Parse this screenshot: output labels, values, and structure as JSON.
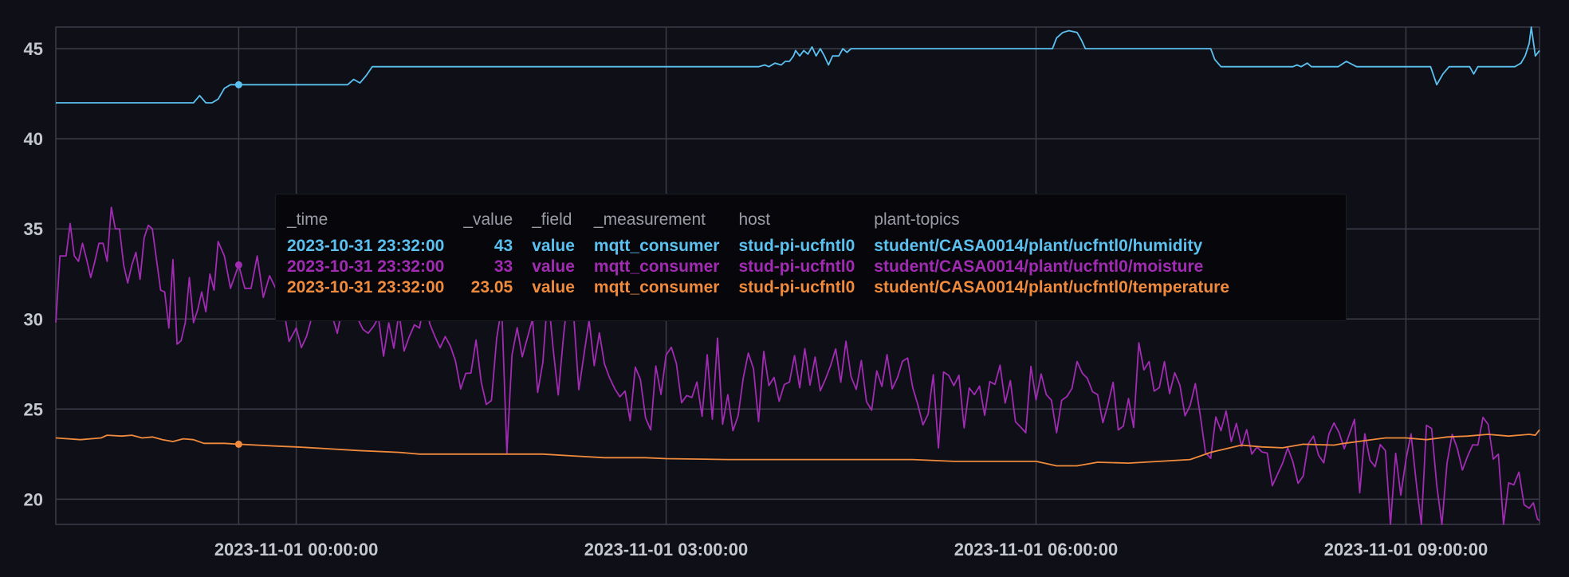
{
  "chart_data": {
    "type": "line",
    "ylim": [
      18.6,
      46.2
    ],
    "yticks": [
      "20",
      "25",
      "30",
      "35",
      "40",
      "45"
    ],
    "xlim": [
      "2023-10-31 22:03:00",
      "2023-11-01 10:05:00"
    ],
    "xticks": [
      {
        "t": "2023-11-01 00:00:00",
        "label": "2023-11-01 00:00:00"
      },
      {
        "t": "2023-11-01 03:00:00",
        "label": "2023-11-01 03:00:00"
      },
      {
        "t": "2023-11-01 06:00:00",
        "label": "2023-11-01 06:00:00"
      },
      {
        "t": "2023-11-01 09:00:00",
        "label": "2023-11-01 09:00:00"
      }
    ],
    "grid": true,
    "series": [
      {
        "name": "student/CASA0014/plant/ucfntl0/humidity",
        "color": "#5bc1f0",
        "points": [
          [
            "2023-10-31 22:03:00",
            42
          ],
          [
            "2023-10-31 23:10:00",
            42
          ],
          [
            "2023-10-31 23:13:00",
            42.4
          ],
          [
            "2023-10-31 23:16:00",
            42
          ],
          [
            "2023-10-31 23:19:00",
            42
          ],
          [
            "2023-10-31 23:22:00",
            42.2
          ],
          [
            "2023-10-31 23:25:00",
            42.8
          ],
          [
            "2023-10-31 23:28:00",
            43
          ],
          [
            "2023-10-31 23:32:00",
            43
          ],
          [
            "2023-11-01 00:25:00",
            43
          ],
          [
            "2023-11-01 00:28:00",
            43.3
          ],
          [
            "2023-11-01 00:31:00",
            43.1
          ],
          [
            "2023-11-01 00:34:00",
            43.5
          ],
          [
            "2023-11-01 00:37:00",
            44
          ],
          [
            "2023-11-01 03:45:00",
            44
          ],
          [
            "2023-11-01 03:48:00",
            44.1
          ],
          [
            "2023-11-01 03:50:00",
            44
          ],
          [
            "2023-11-01 03:53:00",
            44.2
          ],
          [
            "2023-11-01 03:56:00",
            44.1
          ],
          [
            "2023-11-01 03:58:00",
            44.3
          ],
          [
            "2023-11-01 04:00:00",
            44.3
          ],
          [
            "2023-11-01 04:02:00",
            44.6
          ],
          [
            "2023-11-01 04:03:00",
            44.9
          ],
          [
            "2023-11-01 04:05:00",
            44.6
          ],
          [
            "2023-11-01 04:07:00",
            44.9
          ],
          [
            "2023-11-01 04:09:00",
            44.7
          ],
          [
            "2023-11-01 04:11:00",
            45.1
          ],
          [
            "2023-11-01 04:13:00",
            44.6
          ],
          [
            "2023-11-01 04:15:00",
            45
          ],
          [
            "2023-11-01 04:17:00",
            44.6
          ],
          [
            "2023-11-01 04:19:00",
            44.1
          ],
          [
            "2023-11-01 04:21:00",
            44.6
          ],
          [
            "2023-11-01 04:24:00",
            44.6
          ],
          [
            "2023-11-01 04:26:00",
            45
          ],
          [
            "2023-11-01 04:28:00",
            44.8
          ],
          [
            "2023-11-01 04:30:00",
            45
          ],
          [
            "2023-11-01 04:33:00",
            45
          ],
          [
            "2023-11-01 06:08:00",
            45
          ],
          [
            "2023-11-01 06:10:00",
            45.6
          ],
          [
            "2023-11-01 06:13:00",
            45.9
          ],
          [
            "2023-11-01 06:16:00",
            46
          ],
          [
            "2023-11-01 06:20:00",
            45.9
          ],
          [
            "2023-11-01 06:22:00",
            45.5
          ],
          [
            "2023-11-01 06:24:00",
            45
          ],
          [
            "2023-11-01 07:25:00",
            45
          ],
          [
            "2023-11-01 07:27:00",
            44.4
          ],
          [
            "2023-11-01 07:30:00",
            44
          ],
          [
            "2023-11-01 08:05:00",
            44
          ],
          [
            "2023-11-01 08:07:00",
            44.1
          ],
          [
            "2023-11-01 08:09:00",
            44
          ],
          [
            "2023-11-01 08:12:00",
            44.2
          ],
          [
            "2023-11-01 08:14:00",
            44
          ],
          [
            "2023-11-01 08:27:00",
            44
          ],
          [
            "2023-11-01 08:31:00",
            44.3
          ],
          [
            "2023-11-01 08:36:00",
            44
          ],
          [
            "2023-11-01 09:12:00",
            44
          ],
          [
            "2023-11-01 09:15:00",
            43
          ],
          [
            "2023-11-01 09:18:00",
            43.6
          ],
          [
            "2023-11-01 09:21:00",
            44
          ],
          [
            "2023-11-01 09:31:00",
            44
          ],
          [
            "2023-11-01 09:33:00",
            43.6
          ],
          [
            "2023-11-01 09:35:00",
            44
          ],
          [
            "2023-11-01 09:53:00",
            44
          ],
          [
            "2023-11-01 09:56:00",
            44.2
          ],
          [
            "2023-11-01 09:58:00",
            44.6
          ],
          [
            "2023-11-01 10:00:00",
            45.3
          ],
          [
            "2023-11-01 10:01:00",
            46.2
          ],
          [
            "2023-11-01 10:03:00",
            44.6
          ],
          [
            "2023-11-01 10:05:00",
            44.9
          ]
        ]
      },
      {
        "name": "student/CASA0014/plant/ucfntl0/moisture",
        "color": "#a12bb3",
        "seed": 7,
        "anchors": [
          [
            "2023-10-31 22:03:00",
            29.8
          ],
          [
            "2023-10-31 22:05:00",
            33.5
          ],
          [
            "2023-10-31 22:08:00",
            33.5
          ],
          [
            "2023-10-31 22:10:00",
            35.3
          ],
          [
            "2023-10-31 22:12:00",
            33.5
          ],
          [
            "2023-10-31 22:14:00",
            33.2
          ],
          [
            "2023-10-31 22:16:00",
            34.2
          ],
          [
            "2023-10-31 22:18:00",
            33.3
          ],
          [
            "2023-10-31 22:20:00",
            32.3
          ],
          [
            "2023-10-31 22:22:00",
            33.2
          ],
          [
            "2023-10-31 22:24:00",
            34.2
          ],
          [
            "2023-10-31 22:26:00",
            34.2
          ],
          [
            "2023-10-31 22:28:00",
            33.2
          ],
          [
            "2023-10-31 22:30:00",
            36.2
          ],
          [
            "2023-10-31 22:32:00",
            35
          ],
          [
            "2023-10-31 22:34:00",
            35
          ],
          [
            "2023-10-31 22:36:00",
            33
          ],
          [
            "2023-10-31 22:38:00",
            32
          ],
          [
            "2023-10-31 22:40:00",
            33
          ],
          [
            "2023-10-31 22:42:00",
            33.7
          ],
          [
            "2023-10-31 22:44:00",
            32.2
          ],
          [
            "2023-10-31 22:46:00",
            34.5
          ],
          [
            "2023-10-31 22:48:00",
            35.2
          ],
          [
            "2023-10-31 22:50:00",
            35
          ],
          [
            "2023-10-31 22:52:00",
            33.3
          ],
          [
            "2023-10-31 22:54:00",
            31.6
          ],
          [
            "2023-10-31 22:56:00",
            31.5
          ],
          [
            "2023-10-31 22:58:00",
            29.5
          ],
          [
            "2023-10-31 23:00:00",
            33.3
          ],
          [
            "2023-10-31 23:02:00",
            28.6
          ],
          [
            "2023-10-31 23:04:00",
            28.8
          ],
          [
            "2023-10-31 23:06:00",
            29.8
          ],
          [
            "2023-10-31 23:08:00",
            32.3
          ],
          [
            "2023-10-31 23:10:00",
            29.8
          ],
          [
            "2023-10-31 23:12:00",
            30.5
          ],
          [
            "2023-10-31 23:14:00",
            31.5
          ],
          [
            "2023-10-31 23:16:00",
            30.4
          ],
          [
            "2023-10-31 23:18:00",
            32.5
          ],
          [
            "2023-10-31 23:20:00",
            31.6
          ],
          [
            "2023-10-31 23:22:00",
            34.3
          ],
          [
            "2023-10-31 23:25:00",
            33.5
          ],
          [
            "2023-10-31 23:28:00",
            31.7
          ],
          [
            "2023-10-31 23:32:00",
            33
          ],
          [
            "2023-10-31 23:35:00",
            31.7
          ],
          [
            "2023-10-31 23:38:00",
            31.7
          ],
          [
            "2023-10-31 23:41:00",
            33.5
          ],
          [
            "2023-10-31 23:44:00",
            31.2
          ],
          [
            "2023-10-31 23:47:00",
            32.4
          ],
          [
            "2023-10-31 23:50:00",
            31.7
          ],
          [
            "2023-10-31 23:53:00",
            31.2
          ],
          [
            "2023-11-01 00:00:00",
            29.5
          ],
          [
            "2023-11-01 00:10:00",
            30
          ],
          [
            "2023-11-01 00:20:00",
            29.2
          ],
          [
            "2023-11-01 00:30:00",
            30
          ],
          [
            "2023-11-01 01:00:00",
            29.5
          ],
          [
            "2023-11-01 01:15:00",
            28.5
          ],
          [
            "2023-11-01 01:25:00",
            27
          ],
          [
            "2023-11-01 01:30:00",
            26.5
          ],
          [
            "2023-11-01 01:45:00",
            28
          ],
          [
            "2023-11-01 01:55:00",
            30
          ],
          [
            "2023-11-01 02:10:00",
            29
          ],
          [
            "2023-11-01 02:20:00",
            28
          ],
          [
            "2023-11-01 02:30:00",
            27.5
          ],
          [
            "2023-11-01 02:40:00",
            26
          ],
          [
            "2023-11-01 02:50:00",
            24.5
          ],
          [
            "2023-11-01 03:00:00",
            28
          ],
          [
            "2023-11-01 03:15:00",
            26.5
          ],
          [
            "2023-11-01 03:30:00",
            25.8
          ],
          [
            "2023-11-01 04:00:00",
            26.5
          ],
          [
            "2023-11-01 04:30:00",
            26.8
          ],
          [
            "2023-11-01 05:00:00",
            26.2
          ],
          [
            "2023-11-01 05:30:00",
            25.8
          ],
          [
            "2023-11-01 06:00:00",
            25.5
          ],
          [
            "2023-11-01 06:30:00",
            25.8
          ],
          [
            "2023-11-01 07:00:00",
            26.2
          ],
          [
            "2023-11-01 07:15:00",
            25.2
          ],
          [
            "2023-11-01 07:30:00",
            23.8
          ],
          [
            "2023-11-01 07:45:00",
            22.5
          ],
          [
            "2023-11-01 08:00:00",
            22
          ],
          [
            "2023-11-01 08:15:00",
            23.5
          ],
          [
            "2023-11-01 08:30:00",
            22.8
          ],
          [
            "2023-11-01 08:45:00",
            21.8
          ],
          [
            "2023-11-01 09:00:00",
            22.2
          ],
          [
            "2023-11-01 09:20:00",
            22
          ],
          [
            "2023-11-01 09:35:00",
            23
          ],
          [
            "2023-11-01 09:45:00",
            22.5
          ],
          [
            "2023-11-01 09:55:00",
            21.5
          ],
          [
            "2023-11-01 10:00:00",
            19.5
          ],
          [
            "2023-11-01 10:02:00",
            19.8
          ],
          [
            "2023-11-01 10:04:00",
            18.9
          ],
          [
            "2023-11-01 10:05:00",
            18.8
          ]
        ]
      },
      {
        "name": "student/CASA0014/plant/ucfntl0/temperature",
        "color": "#f08a3c",
        "points": [
          [
            "2023-10-31 22:03:00",
            23.4
          ],
          [
            "2023-10-31 22:15:00",
            23.3
          ],
          [
            "2023-10-31 22:25:00",
            23.4
          ],
          [
            "2023-10-31 22:28:00",
            23.55
          ],
          [
            "2023-10-31 22:35:00",
            23.5
          ],
          [
            "2023-10-31 22:40:00",
            23.55
          ],
          [
            "2023-10-31 22:45:00",
            23.4
          ],
          [
            "2023-10-31 22:50:00",
            23.45
          ],
          [
            "2023-10-31 22:55:00",
            23.3
          ],
          [
            "2023-10-31 23:00:00",
            23.2
          ],
          [
            "2023-10-31 23:05:00",
            23.35
          ],
          [
            "2023-10-31 23:10:00",
            23.3
          ],
          [
            "2023-10-31 23:15:00",
            23.1
          ],
          [
            "2023-10-31 23:25:00",
            23.1
          ],
          [
            "2023-10-31 23:32:00",
            23.05
          ],
          [
            "2023-10-31 23:50:00",
            22.95
          ],
          [
            "2023-11-01 00:00:00",
            22.9
          ],
          [
            "2023-11-01 00:15:00",
            22.8
          ],
          [
            "2023-11-01 00:30:00",
            22.7
          ],
          [
            "2023-11-01 00:50:00",
            22.6
          ],
          [
            "2023-11-01 01:00:00",
            22.5
          ],
          [
            "2023-11-01 01:30:00",
            22.5
          ],
          [
            "2023-11-01 02:00:00",
            22.5
          ],
          [
            "2023-11-01 02:15:00",
            22.4
          ],
          [
            "2023-11-01 02:30:00",
            22.3
          ],
          [
            "2023-11-01 02:50:00",
            22.3
          ],
          [
            "2023-11-01 03:00:00",
            22.25
          ],
          [
            "2023-11-01 03:30:00",
            22.2
          ],
          [
            "2023-11-01 04:00:00",
            22.2
          ],
          [
            "2023-11-01 04:30:00",
            22.2
          ],
          [
            "2023-11-01 05:00:00",
            22.2
          ],
          [
            "2023-11-01 05:20:00",
            22.1
          ],
          [
            "2023-11-01 05:40:00",
            22.1
          ],
          [
            "2023-11-01 06:00:00",
            22.1
          ],
          [
            "2023-11-01 06:10:00",
            21.85
          ],
          [
            "2023-11-01 06:20:00",
            21.85
          ],
          [
            "2023-11-01 06:30:00",
            22.05
          ],
          [
            "2023-11-01 06:45:00",
            22.0
          ],
          [
            "2023-11-01 07:00:00",
            22.1
          ],
          [
            "2023-11-01 07:15:00",
            22.2
          ],
          [
            "2023-11-01 07:25:00",
            22.6
          ],
          [
            "2023-11-01 07:40:00",
            23.0
          ],
          [
            "2023-11-01 07:50:00",
            22.9
          ],
          [
            "2023-11-01 08:00:00",
            22.85
          ],
          [
            "2023-11-01 08:10:00",
            23.05
          ],
          [
            "2023-11-01 08:25:00",
            23.0
          ],
          [
            "2023-11-01 08:30:00",
            23.1
          ],
          [
            "2023-11-01 08:40:00",
            23.25
          ],
          [
            "2023-11-01 08:50:00",
            23.4
          ],
          [
            "2023-11-01 09:00:00",
            23.4
          ],
          [
            "2023-11-01 09:10:00",
            23.3
          ],
          [
            "2023-11-01 09:20:00",
            23.45
          ],
          [
            "2023-11-01 09:30:00",
            23.5
          ],
          [
            "2023-11-01 09:40:00",
            23.6
          ],
          [
            "2023-11-01 09:50:00",
            23.5
          ],
          [
            "2023-11-01 10:00:00",
            23.6
          ],
          [
            "2023-11-01 10:03:00",
            23.55
          ],
          [
            "2023-11-01 10:05:00",
            23.85
          ]
        ]
      }
    ],
    "hover": {
      "t": "2023-10-31 23:32:00",
      "columns": [
        "_time",
        "_value",
        "_field",
        "_measurement",
        "host",
        "plant-topics"
      ],
      "rows": [
        {
          "color": "#5bc1f0",
          "time": "2023-10-31 23:32:00",
          "value": "43",
          "field": "value",
          "measurement": "mqtt_consumer",
          "host": "stud-pi-ucfntl0",
          "topic": "student/CASA0014/plant/ucfntl0/humidity"
        },
        {
          "color": "#a12bb3",
          "time": "2023-10-31 23:32:00",
          "value": "33",
          "field": "value",
          "measurement": "mqtt_consumer",
          "host": "stud-pi-ucfntl0",
          "topic": "student/CASA0014/plant/ucfntl0/moisture"
        },
        {
          "color": "#f08a3c",
          "time": "2023-10-31 23:32:00",
          "value": "23.05",
          "field": "value",
          "measurement": "mqtt_consumer",
          "host": "stud-pi-ucfntl0",
          "topic": "student/CASA0014/plant/ucfntl0/temperature"
        }
      ]
    }
  }
}
